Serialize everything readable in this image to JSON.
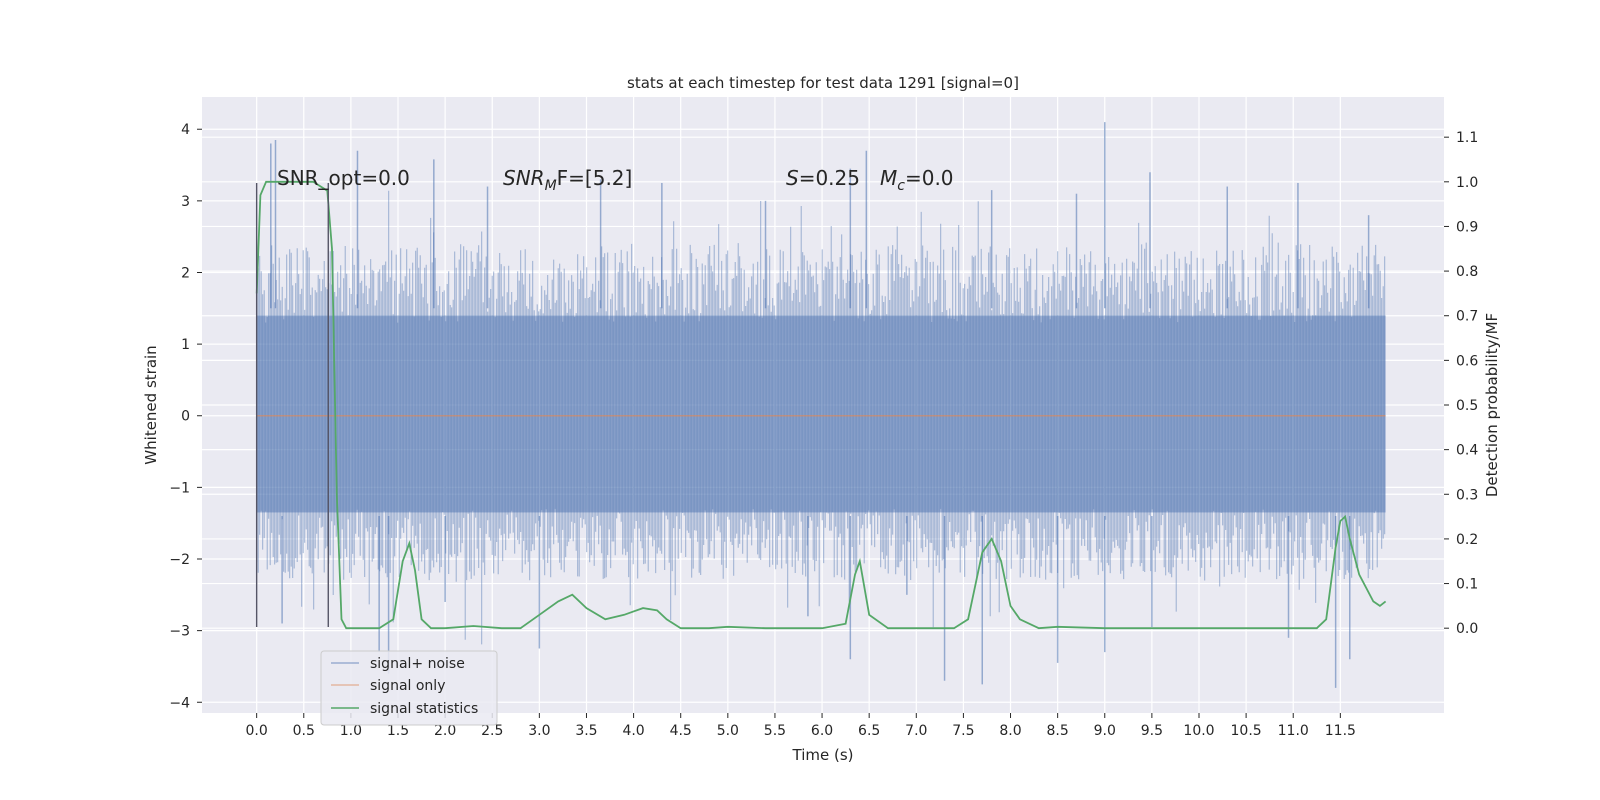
{
  "chart_data": {
    "type": "line",
    "title": "stats at each timestep for test data 1291 [signal=0]",
    "xlabel": "Time (s)",
    "ylabel_left": "Whitened strain",
    "ylabel_right": "Detection probability/MF",
    "xlim": [
      -0.58,
      12.6
    ],
    "ylim_left": [
      -4.15,
      4.45
    ],
    "ylim_right": [
      -0.19,
      1.19
    ],
    "x_ticks": [
      0.0,
      0.5,
      1.0,
      1.5,
      2.0,
      2.5,
      3.0,
      3.5,
      4.0,
      4.5,
      5.0,
      5.5,
      6.0,
      6.5,
      7.0,
      7.5,
      8.0,
      8.5,
      9.0,
      9.5,
      10.0,
      10.5,
      11.0,
      11.5
    ],
    "x_tick_labels": [
      "0.0",
      "0.5",
      "1.0",
      "1.5",
      "2.0",
      "2.5",
      "3.0",
      "3.5",
      "4.0",
      "4.5",
      "5.0",
      "5.5",
      "6.0",
      "6.5",
      "7.0",
      "7.5",
      "8.0",
      "8.5",
      "9.0",
      "9.5",
      "10.0",
      "10.5",
      "11.0",
      "11.5"
    ],
    "y_left_ticks": [
      -4,
      -3,
      -2,
      -1,
      0,
      1,
      2,
      3,
      4
    ],
    "y_left_tick_labels": [
      "−4",
      "−3",
      "−2",
      "−1",
      "0",
      "1",
      "2",
      "3",
      "4"
    ],
    "y_right_ticks": [
      0.0,
      0.1,
      0.2,
      0.3,
      0.4,
      0.5,
      0.6,
      0.7,
      0.8,
      0.9,
      1.0,
      1.1
    ],
    "y_right_tick_labels": [
      "0.0",
      "0.1",
      "0.2",
      "0.3",
      "0.4",
      "0.5",
      "0.6",
      "0.7",
      "0.8",
      "0.9",
      "1.0",
      "1.1"
    ],
    "grid": true,
    "legend_position": "lower-left",
    "annotations": {
      "snr_opt": "SNR_opt=0.0",
      "snr_mf_label": "SNR",
      "snr_mf_sub": "M",
      "snr_mf_rest": "F=[5.2]",
      "s_label": "S",
      "s_value": "=0.25",
      "mc_label": "M",
      "mc_sub": "c",
      "mc_value": "=0.0"
    },
    "vlines": [
      {
        "x": 0.0,
        "ymin": -2.95,
        "ymax": 3.25
      },
      {
        "x": 0.76,
        "ymin": -2.95,
        "ymax": 3.25
      }
    ],
    "series": [
      {
        "name": "signal+ noise",
        "color": "#4c72b0",
        "axis": "left",
        "style": "noise",
        "x_range": [
          0.0,
          11.98
        ],
        "envelope_upper": 1.6,
        "envelope_lower": -1.5,
        "spikes_up": [
          [
            0.15,
            3.8
          ],
          [
            0.2,
            3.85
          ],
          [
            1.07,
            3.7
          ],
          [
            1.88,
            3.58
          ],
          [
            2.45,
            3.2
          ],
          [
            3.65,
            3.3
          ],
          [
            4.3,
            3.25
          ],
          [
            5.4,
            3.0
          ],
          [
            6.3,
            3.45
          ],
          [
            6.47,
            3.7
          ],
          [
            7.8,
            3.15
          ],
          [
            8.7,
            3.1
          ],
          [
            9.0,
            4.1
          ],
          [
            9.48,
            3.4
          ],
          [
            10.3,
            3.2
          ],
          [
            11.05,
            3.25
          ],
          [
            11.8,
            2.8
          ]
        ],
        "spikes_down": [
          [
            0.27,
            -2.9
          ],
          [
            1.3,
            -3.3
          ],
          [
            1.4,
            -3.6
          ],
          [
            2.0,
            -2.6
          ],
          [
            3.0,
            -3.25
          ],
          [
            5.85,
            -2.8
          ],
          [
            6.3,
            -3.4
          ],
          [
            6.9,
            -2.5
          ],
          [
            7.3,
            -3.7
          ],
          [
            7.7,
            -3.75
          ],
          [
            8.5,
            -3.45
          ],
          [
            9.0,
            -3.3
          ],
          [
            9.5,
            -2.95
          ],
          [
            10.95,
            -3.1
          ],
          [
            11.45,
            -3.8
          ],
          [
            11.6,
            -3.4
          ]
        ]
      },
      {
        "name": "signal only",
        "color": "#dd8452",
        "axis": "left",
        "x": [
          0.0,
          11.98
        ],
        "y": [
          0.0,
          0.0
        ]
      },
      {
        "name": "signal statistics",
        "color": "#55a868",
        "axis": "right",
        "x": [
          0.0,
          0.04,
          0.1,
          0.16,
          0.25,
          0.4,
          0.6,
          0.75,
          0.8,
          0.85,
          0.9,
          0.95,
          1.0,
          1.1,
          1.3,
          1.45,
          1.55,
          1.62,
          1.68,
          1.75,
          1.85,
          2.0,
          2.3,
          2.6,
          2.8,
          3.0,
          3.2,
          3.35,
          3.5,
          3.7,
          3.9,
          4.1,
          4.25,
          4.35,
          4.5,
          4.8,
          5.0,
          5.4,
          6.0,
          6.25,
          6.35,
          6.4,
          6.5,
          6.7,
          7.0,
          7.4,
          7.55,
          7.7,
          7.8,
          7.9,
          8.0,
          8.1,
          8.3,
          8.5,
          9.0,
          9.5,
          10.0,
          10.5,
          11.0,
          11.25,
          11.35,
          11.45,
          11.5,
          11.55,
          11.6,
          11.7,
          11.85,
          11.92,
          11.98
        ],
        "y": [
          0.75,
          0.97,
          1.0,
          1.0,
          1.0,
          1.0,
          1.0,
          0.98,
          0.85,
          0.3,
          0.02,
          0.0,
          0.0,
          0.0,
          0.0,
          0.02,
          0.15,
          0.19,
          0.13,
          0.02,
          0.0,
          0.0,
          0.005,
          0.0,
          0.0,
          0.03,
          0.06,
          0.075,
          0.045,
          0.02,
          0.03,
          0.045,
          0.04,
          0.02,
          0.0,
          0.0,
          0.003,
          0.0,
          0.0,
          0.01,
          0.12,
          0.15,
          0.03,
          0.0,
          0.0,
          0.0,
          0.02,
          0.17,
          0.2,
          0.15,
          0.05,
          0.02,
          0.0,
          0.003,
          0.0,
          0.0,
          0.0,
          0.0,
          0.0,
          0.0,
          0.02,
          0.18,
          0.24,
          0.25,
          0.2,
          0.12,
          0.06,
          0.05,
          0.06
        ]
      }
    ]
  }
}
